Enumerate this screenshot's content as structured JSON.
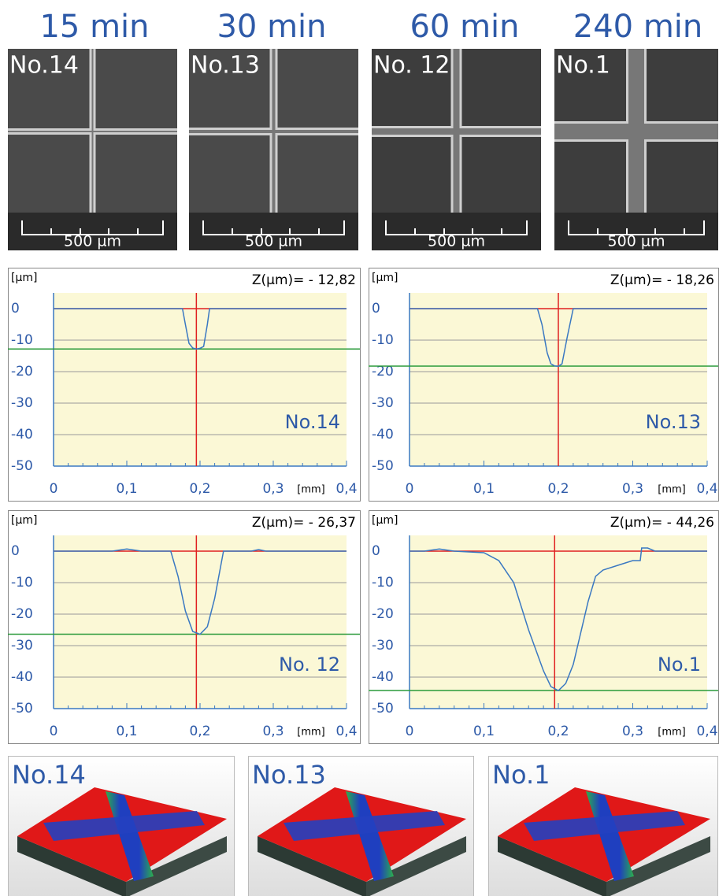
{
  "time_labels": [
    "15 min",
    "30 min",
    "60 min",
    "240 min"
  ],
  "sem_images": [
    {
      "label": "No.14",
      "scale": "500 µm"
    },
    {
      "label": "No.13",
      "scale": "500 µm"
    },
    {
      "label": "No. 12",
      "scale": "500 µm"
    },
    {
      "label": "No.1",
      "scale": "500 µm"
    }
  ],
  "chart_data": [
    {
      "type": "line",
      "title": "No.14",
      "y_label": "[µm]",
      "x_label": "[mm]",
      "depth": {
        "value": -12.82,
        "label": "Z(µm)= - 12,82"
      },
      "cursor_x": 0.195,
      "x": [
        0,
        0.176,
        0.18,
        0.185,
        0.19,
        0.195,
        0.2,
        0.205,
        0.21,
        0.213,
        0.4
      ],
      "series": [
        {
          "color": "#3a78c2",
          "values": [
            0,
            0,
            -5,
            -11,
            -12.5,
            -12.8,
            -12.6,
            -12,
            -5,
            0,
            0
          ]
        }
      ],
      "xlim": [
        0,
        0.4
      ],
      "ylim": [
        -50,
        5
      ],
      "yticks": [
        0,
        -10,
        -20,
        -30,
        -40,
        -50
      ],
      "xticks": [
        0,
        {
          "value": 0.1,
          "label": "0,1"
        },
        {
          "value": 0.2,
          "label": "0,2"
        },
        {
          "value": 0.3,
          "label": "0,3"
        },
        {
          "value": 0.4,
          "label": "0,4"
        }
      ],
      "grid": true
    },
    {
      "type": "line",
      "title": "No.13",
      "y_label": "[µm]",
      "x_label": "[mm]",
      "depth": {
        "value": -18.26,
        "label": "Z(µm)= - 18,26"
      },
      "cursor_x": 0.2,
      "x": [
        0,
        0.172,
        0.178,
        0.185,
        0.19,
        0.195,
        0.2,
        0.205,
        0.212,
        0.22,
        0.4
      ],
      "series": [
        {
          "color": "#3a78c2",
          "values": [
            0,
            0,
            -5,
            -14,
            -17.5,
            -18.2,
            -18.3,
            -17.5,
            -9,
            0,
            0
          ]
        }
      ],
      "xlim": [
        0,
        0.4
      ],
      "ylim": [
        -50,
        5
      ],
      "yticks": [
        0,
        -10,
        -20,
        -30,
        -40,
        -50
      ],
      "xticks": [
        0,
        {
          "value": 0.1,
          "label": "0,1"
        },
        {
          "value": 0.2,
          "label": "0,2"
        },
        {
          "value": 0.3,
          "label": "0,3"
        },
        {
          "value": 0.4,
          "label": "0,4"
        }
      ],
      "grid": true
    },
    {
      "type": "line",
      "title": "No. 12",
      "y_label": "[µm]",
      "x_label": "[mm]",
      "depth": {
        "value": -26.37,
        "label": "Z(µm)= - 26,37"
      },
      "cursor_x": 0.195,
      "x": [
        0,
        0.08,
        0.1,
        0.12,
        0.16,
        0.17,
        0.18,
        0.19,
        0.2,
        0.21,
        0.22,
        0.232,
        0.27,
        0.28,
        0.29,
        0.31,
        0.4
      ],
      "series": [
        {
          "color": "#3a78c2",
          "values": [
            0,
            0,
            0.7,
            0,
            0,
            -8,
            -19,
            -25.5,
            -26.4,
            -24,
            -15,
            0,
            0,
            0.5,
            0,
            0,
            0
          ]
        }
      ],
      "xlim": [
        0,
        0.4
      ],
      "ylim": [
        -50,
        5
      ],
      "yticks": [
        0,
        -10,
        -20,
        -30,
        -40,
        -50
      ],
      "xticks": [
        0,
        {
          "value": 0.1,
          "label": "0,1"
        },
        {
          "value": 0.2,
          "label": "0,2"
        },
        {
          "value": 0.3,
          "label": "0,3"
        },
        {
          "value": 0.4,
          "label": "0,4"
        }
      ],
      "grid": true
    },
    {
      "type": "line",
      "title": "No.1",
      "y_label": "[µm]",
      "x_label": "[mm]",
      "depth": {
        "value": -44.26,
        "label": "Z(µm)= - 44,26"
      },
      "cursor_x": 0.195,
      "x": [
        0,
        0.02,
        0.04,
        0.06,
        0.1,
        0.12,
        0.14,
        0.16,
        0.18,
        0.19,
        0.2,
        0.21,
        0.22,
        0.24,
        0.25,
        0.26,
        0.28,
        0.3,
        0.31,
        0.312,
        0.32,
        0.33,
        0.4
      ],
      "series": [
        {
          "color": "#3a78c2",
          "values": [
            0,
            0,
            0.7,
            0,
            -0.5,
            -3,
            -10,
            -25,
            -38,
            -43,
            -44.3,
            -42,
            -36,
            -16,
            -8,
            -6,
            -4.5,
            -3,
            -3,
            1,
            1,
            0,
            0
          ]
        }
      ],
      "xlim": [
        0,
        0.4
      ],
      "ylim": [
        -50,
        5
      ],
      "yticks": [
        0,
        -10,
        -20,
        -30,
        -40,
        -50
      ],
      "xticks": [
        0,
        {
          "value": 0.1,
          "label": "0,1"
        },
        {
          "value": 0.2,
          "label": "0,2"
        },
        {
          "value": 0.3,
          "label": "0,3"
        },
        {
          "value": 0.4,
          "label": "0,4"
        }
      ],
      "grid": true
    }
  ],
  "render_labels": [
    "No.14",
    "No.13",
    "No.1"
  ]
}
